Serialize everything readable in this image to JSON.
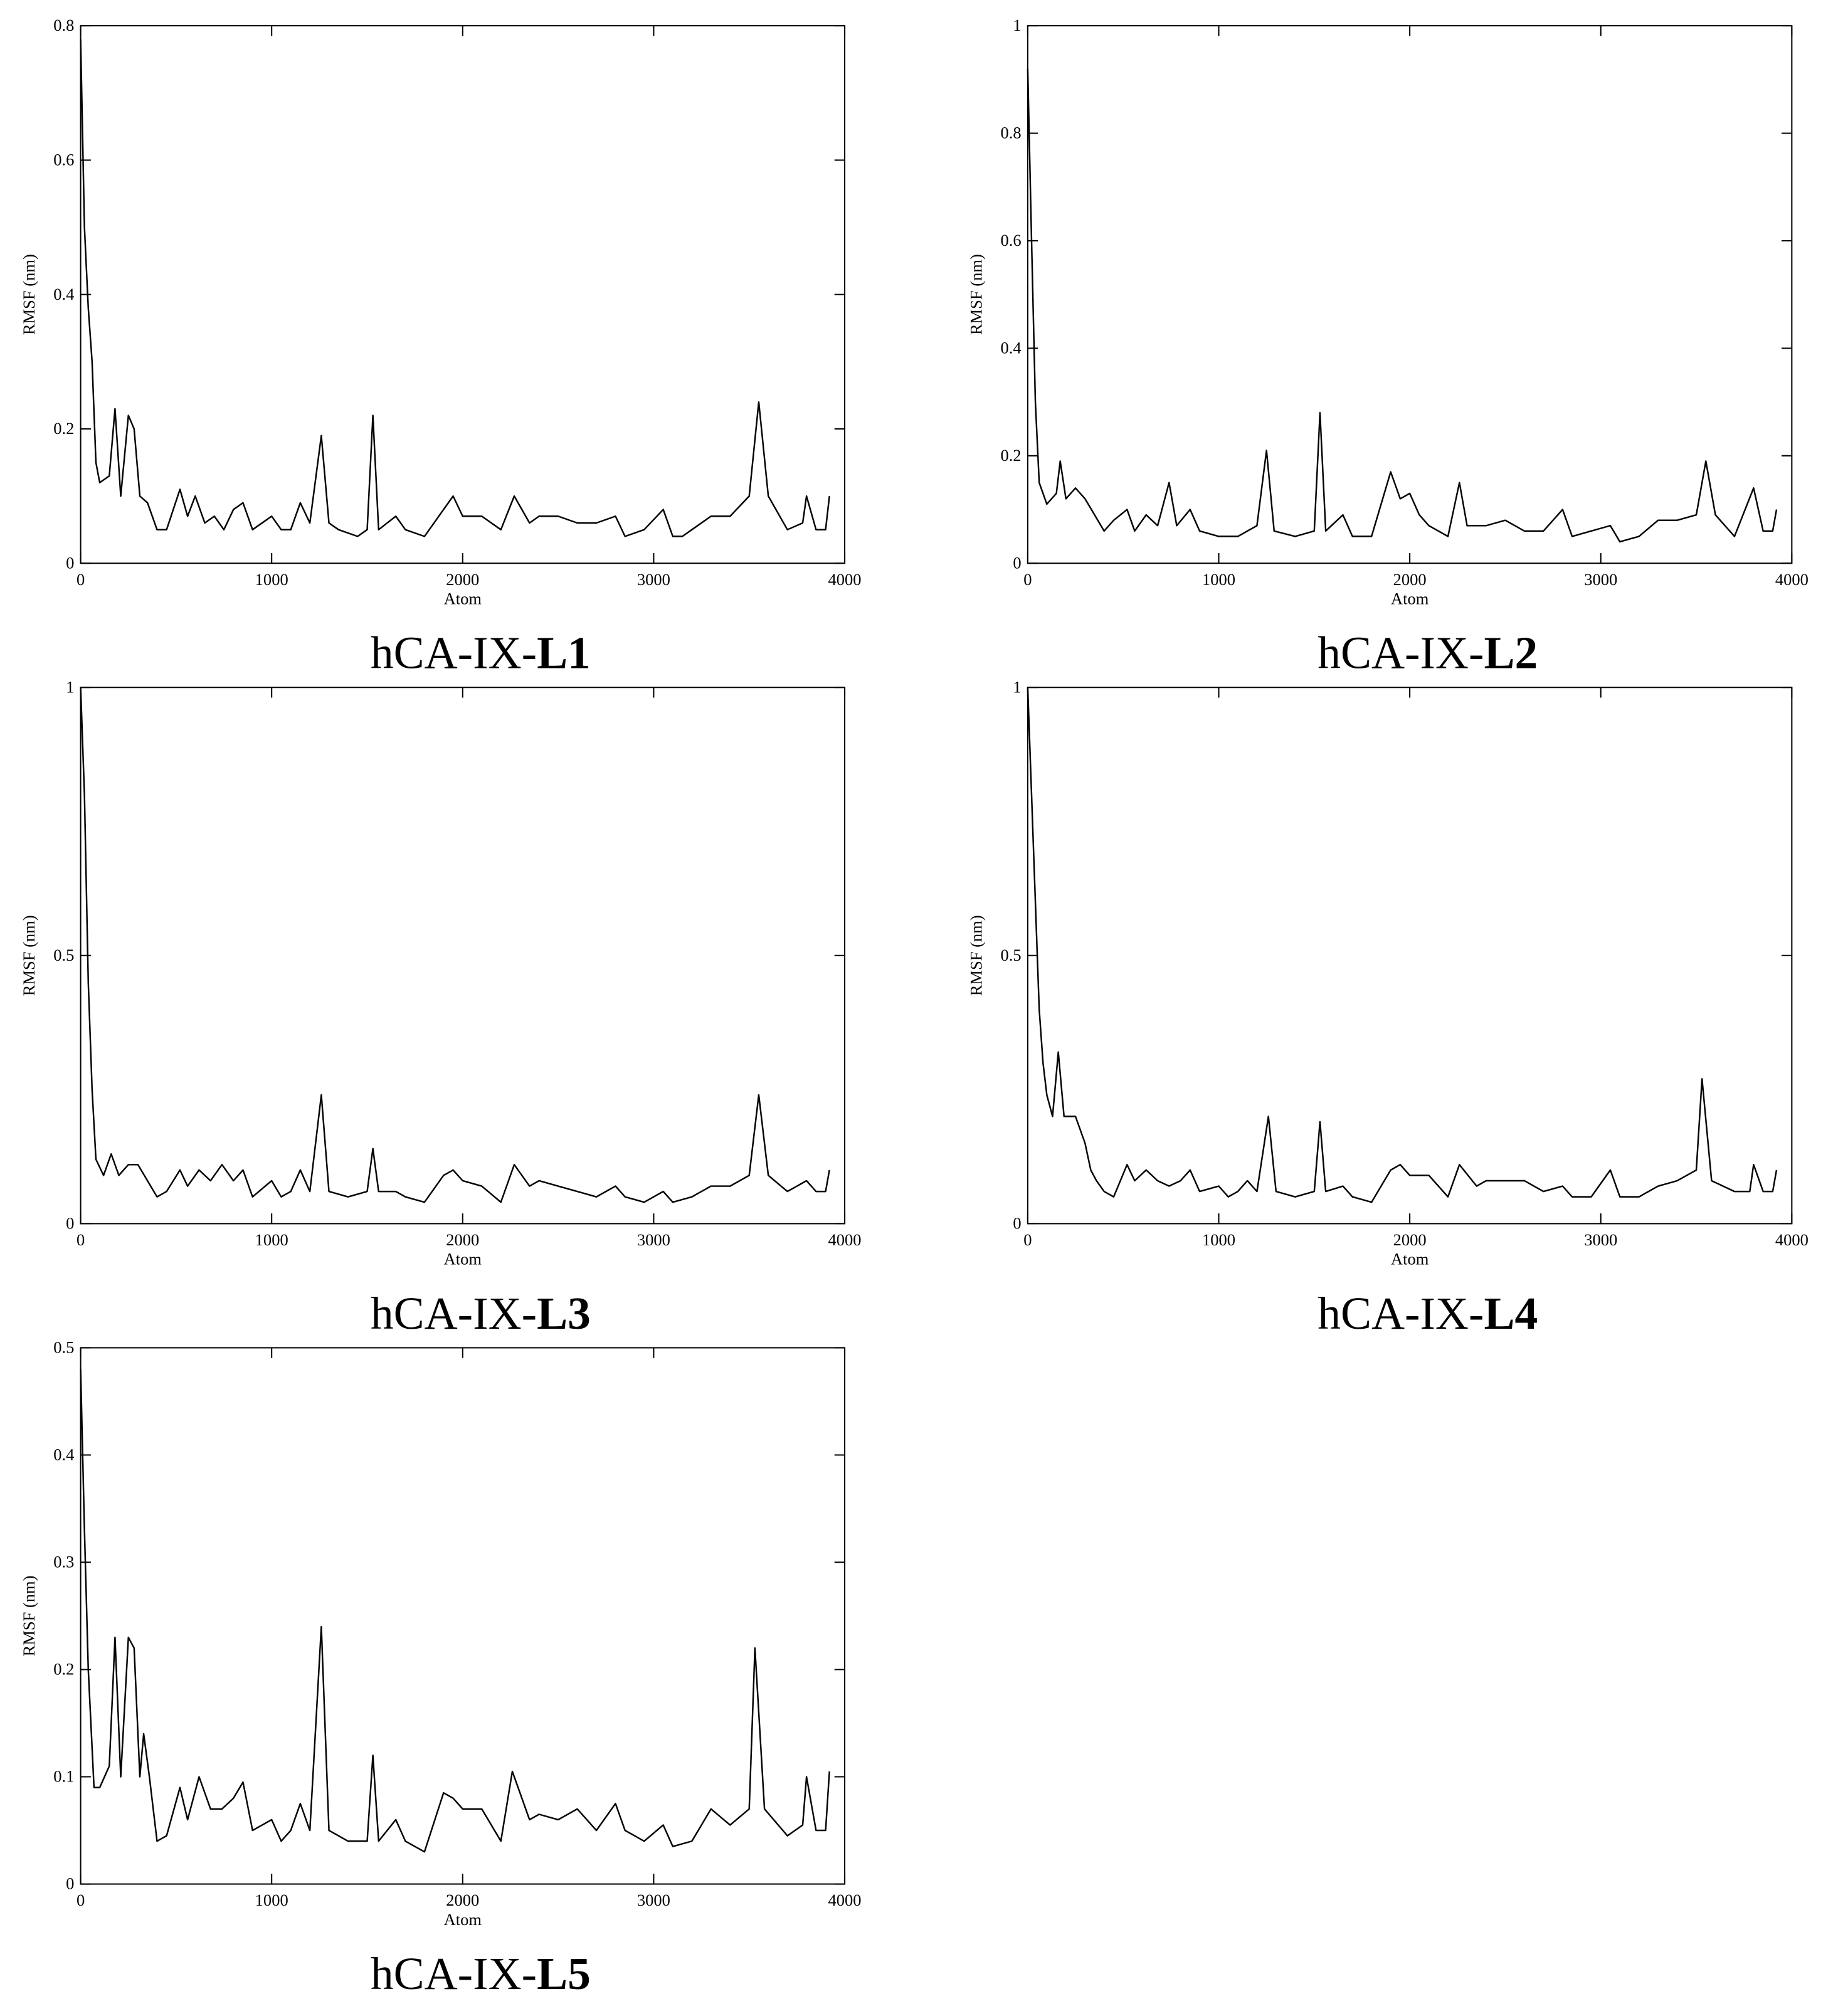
{
  "chart_data": [
    {
      "type": "line",
      "title": "hCA-IX-L1",
      "xlabel": "Atom",
      "ylabel": "RMSF (nm)",
      "xlim": [
        0,
        4000
      ],
      "xticks": [
        0,
        1000,
        2000,
        3000,
        4000
      ],
      "ylim": [
        0,
        0.8
      ],
      "yticks": [
        0,
        0.2,
        0.4,
        0.6,
        0.8
      ],
      "color": "#000000",
      "x": [
        0,
        20,
        40,
        60,
        80,
        100,
        150,
        180,
        210,
        250,
        280,
        310,
        350,
        400,
        450,
        520,
        560,
        600,
        650,
        700,
        750,
        800,
        850,
        900,
        1000,
        1050,
        1100,
        1150,
        1200,
        1260,
        1300,
        1350,
        1450,
        1500,
        1530,
        1560,
        1650,
        1700,
        1800,
        1900,
        1950,
        2000,
        2100,
        2200,
        2270,
        2350,
        2400,
        2500,
        2600,
        2700,
        2800,
        2850,
        2950,
        3050,
        3100,
        3150,
        3200,
        3300,
        3400,
        3500,
        3550,
        3600,
        3700,
        3780,
        3800,
        3850,
        3900,
        3920
      ],
      "values": [
        0.78,
        0.5,
        0.38,
        0.3,
        0.15,
        0.12,
        0.13,
        0.23,
        0.1,
        0.22,
        0.2,
        0.1,
        0.09,
        0.05,
        0.05,
        0.11,
        0.07,
        0.1,
        0.06,
        0.07,
        0.05,
        0.08,
        0.09,
        0.05,
        0.07,
        0.05,
        0.05,
        0.09,
        0.06,
        0.19,
        0.06,
        0.05,
        0.04,
        0.05,
        0.22,
        0.05,
        0.07,
        0.05,
        0.04,
        0.08,
        0.1,
        0.07,
        0.07,
        0.05,
        0.1,
        0.06,
        0.07,
        0.07,
        0.06,
        0.06,
        0.07,
        0.04,
        0.05,
        0.08,
        0.04,
        0.04,
        0.05,
        0.07,
        0.07,
        0.1,
        0.24,
        0.1,
        0.05,
        0.06,
        0.1,
        0.05,
        0.05,
        0.1
      ]
    },
    {
      "type": "line",
      "title": "hCA-IX-L2",
      "xlabel": "Atom",
      "ylabel": "RMSF (nm)",
      "xlim": [
        0,
        4000
      ],
      "xticks": [
        0,
        1000,
        2000,
        3000,
        4000
      ],
      "ylim": [
        0,
        1
      ],
      "yticks": [
        0,
        0.2,
        0.4,
        0.6,
        0.8,
        1
      ],
      "color": "#000000",
      "x": [
        0,
        20,
        40,
        60,
        100,
        150,
        170,
        200,
        250,
        300,
        350,
        400,
        450,
        520,
        560,
        620,
        680,
        740,
        780,
        850,
        900,
        1000,
        1100,
        1200,
        1250,
        1290,
        1400,
        1500,
        1530,
        1560,
        1650,
        1700,
        1800,
        1900,
        1950,
        2000,
        2050,
        2100,
        2200,
        2260,
        2300,
        2400,
        2500,
        2600,
        2700,
        2800,
        2850,
        2950,
        3050,
        3100,
        3200,
        3300,
        3400,
        3500,
        3550,
        3600,
        3700,
        3800,
        3850,
        3900,
        3920
      ],
      "values": [
        0.92,
        0.6,
        0.3,
        0.15,
        0.11,
        0.13,
        0.19,
        0.12,
        0.14,
        0.12,
        0.09,
        0.06,
        0.08,
        0.1,
        0.06,
        0.09,
        0.07,
        0.15,
        0.07,
        0.1,
        0.06,
        0.05,
        0.05,
        0.07,
        0.21,
        0.06,
        0.05,
        0.06,
        0.28,
        0.06,
        0.09,
        0.05,
        0.05,
        0.17,
        0.12,
        0.13,
        0.09,
        0.07,
        0.05,
        0.15,
        0.07,
        0.07,
        0.08,
        0.06,
        0.06,
        0.1,
        0.05,
        0.06,
        0.07,
        0.04,
        0.05,
        0.08,
        0.08,
        0.09,
        0.19,
        0.09,
        0.05,
        0.14,
        0.06,
        0.06,
        0.1
      ]
    },
    {
      "type": "line",
      "title": "hCA-IX-L3",
      "xlabel": "Atom",
      "ylabel": "RMSF (nm)",
      "xlim": [
        0,
        4000
      ],
      "xticks": [
        0,
        1000,
        2000,
        3000,
        4000
      ],
      "ylim": [
        0,
        1
      ],
      "yticks": [
        0,
        0.5,
        1
      ],
      "color": "#000000",
      "x": [
        0,
        20,
        40,
        60,
        80,
        120,
        160,
        200,
        250,
        300,
        350,
        400,
        450,
        520,
        560,
        620,
        680,
        740,
        800,
        850,
        900,
        1000,
        1050,
        1100,
        1150,
        1200,
        1260,
        1300,
        1400,
        1500,
        1530,
        1560,
        1650,
        1700,
        1800,
        1900,
        1950,
        2000,
        2100,
        2200,
        2270,
        2350,
        2400,
        2500,
        2600,
        2700,
        2800,
        2850,
        2950,
        3050,
        3100,
        3200,
        3300,
        3400,
        3500,
        3550,
        3600,
        3700,
        3800,
        3850,
        3900,
        3920
      ],
      "values": [
        1,
        0.8,
        0.45,
        0.25,
        0.12,
        0.09,
        0.13,
        0.09,
        0.11,
        0.11,
        0.08,
        0.05,
        0.06,
        0.1,
        0.07,
        0.1,
        0.08,
        0.11,
        0.08,
        0.1,
        0.05,
        0.08,
        0.05,
        0.06,
        0.1,
        0.06,
        0.24,
        0.06,
        0.05,
        0.06,
        0.14,
        0.06,
        0.06,
        0.05,
        0.04,
        0.09,
        0.1,
        0.08,
        0.07,
        0.04,
        0.11,
        0.07,
        0.08,
        0.07,
        0.06,
        0.05,
        0.07,
        0.05,
        0.04,
        0.06,
        0.04,
        0.05,
        0.07,
        0.07,
        0.09,
        0.24,
        0.09,
        0.06,
        0.08,
        0.06,
        0.06,
        0.1
      ]
    },
    {
      "type": "line",
      "title": "hCA-IX-L4",
      "xlabel": "Atom",
      "ylabel": "RMSF (nm)",
      "xlim": [
        0,
        4000
      ],
      "xticks": [
        0,
        1000,
        2000,
        3000,
        4000
      ],
      "ylim": [
        0,
        1
      ],
      "yticks": [
        0,
        0.5,
        1
      ],
      "color": "#000000",
      "x": [
        0,
        20,
        40,
        60,
        80,
        100,
        130,
        160,
        190,
        250,
        300,
        330,
        360,
        400,
        450,
        520,
        560,
        620,
        680,
        740,
        800,
        850,
        900,
        1000,
        1050,
        1100,
        1150,
        1200,
        1260,
        1300,
        1400,
        1500,
        1530,
        1560,
        1650,
        1700,
        1800,
        1900,
        1950,
        2000,
        2100,
        2200,
        2260,
        2350,
        2400,
        2500,
        2600,
        2700,
        2800,
        2850,
        2950,
        3050,
        3100,
        3200,
        3300,
        3400,
        3500,
        3530,
        3580,
        3700,
        3780,
        3800,
        3850,
        3900,
        3920
      ],
      "values": [
        1,
        0.8,
        0.6,
        0.4,
        0.3,
        0.24,
        0.2,
        0.32,
        0.2,
        0.2,
        0.15,
        0.1,
        0.08,
        0.06,
        0.05,
        0.11,
        0.08,
        0.1,
        0.08,
        0.07,
        0.08,
        0.1,
        0.06,
        0.07,
        0.05,
        0.06,
        0.08,
        0.06,
        0.2,
        0.06,
        0.05,
        0.06,
        0.19,
        0.06,
        0.07,
        0.05,
        0.04,
        0.1,
        0.11,
        0.09,
        0.09,
        0.05,
        0.11,
        0.07,
        0.08,
        0.08,
        0.08,
        0.06,
        0.07,
        0.05,
        0.05,
        0.1,
        0.05,
        0.05,
        0.07,
        0.08,
        0.1,
        0.27,
        0.08,
        0.06,
        0.06,
        0.11,
        0.06,
        0.06,
        0.1
      ]
    },
    {
      "type": "line",
      "title": "hCA-IX-L5",
      "xlabel": "Atom",
      "ylabel": "RMSF (nm)",
      "xlim": [
        0,
        4000
      ],
      "xticks": [
        0,
        1000,
        2000,
        3000,
        4000
      ],
      "ylim": [
        0,
        0.5
      ],
      "yticks": [
        0,
        0.1,
        0.2,
        0.3,
        0.4,
        0.5
      ],
      "color": "#000000",
      "x": [
        0,
        20,
        40,
        70,
        100,
        150,
        180,
        210,
        250,
        280,
        310,
        330,
        360,
        400,
        450,
        520,
        560,
        620,
        680,
        740,
        800,
        850,
        900,
        1000,
        1050,
        1100,
        1150,
        1200,
        1260,
        1300,
        1400,
        1500,
        1530,
        1560,
        1650,
        1700,
        1800,
        1900,
        1950,
        2000,
        2100,
        2200,
        2260,
        2350,
        2400,
        2500,
        2600,
        2700,
        2800,
        2850,
        2950,
        3050,
        3100,
        3200,
        3300,
        3400,
        3500,
        3530,
        3580,
        3700,
        3780,
        3800,
        3850,
        3900,
        3920
      ],
      "values": [
        0.48,
        0.33,
        0.2,
        0.09,
        0.09,
        0.11,
        0.23,
        0.1,
        0.23,
        0.22,
        0.1,
        0.14,
        0.1,
        0.04,
        0.045,
        0.09,
        0.06,
        0.1,
        0.07,
        0.07,
        0.08,
        0.095,
        0.05,
        0.06,
        0.04,
        0.05,
        0.075,
        0.05,
        0.24,
        0.05,
        0.04,
        0.04,
        0.12,
        0.04,
        0.06,
        0.04,
        0.03,
        0.085,
        0.08,
        0.07,
        0.07,
        0.04,
        0.105,
        0.06,
        0.065,
        0.06,
        0.07,
        0.05,
        0.075,
        0.05,
        0.04,
        0.055,
        0.035,
        0.04,
        0.07,
        0.055,
        0.07,
        0.22,
        0.07,
        0.045,
        0.055,
        0.1,
        0.05,
        0.05,
        0.105
      ]
    }
  ]
}
